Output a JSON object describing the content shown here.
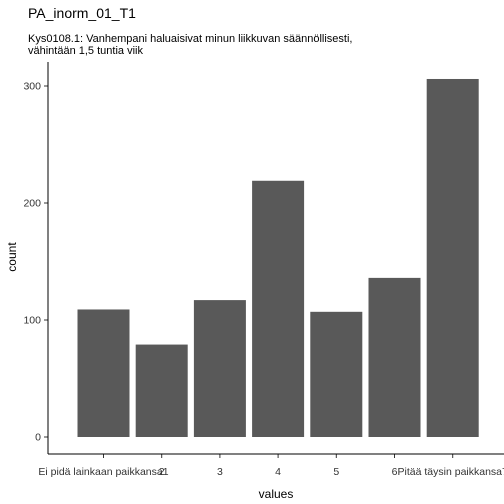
{
  "chart_data": {
    "type": "bar",
    "title": "PA_inorm_01_T1",
    "subtitle_lines": [
      "Kys0108.1: Vanhempani haluaisivat minun liikkuvan säännöllisesti,",
      "vähintään 1,5 tuntia viik"
    ],
    "xlabel": "values",
    "ylabel": "count",
    "categories": [
      "Ei pidä lainkaan paikkansa1",
      "2",
      "3",
      "4",
      "5",
      "6",
      "Pitää täysin paikkansa7"
    ],
    "values": [
      109,
      79,
      117,
      219,
      107,
      136,
      306
    ],
    "ylim": [
      0,
      320
    ],
    "yticks": [
      0,
      100,
      200,
      300
    ],
    "grid": false,
    "bar_color": "#595959"
  }
}
